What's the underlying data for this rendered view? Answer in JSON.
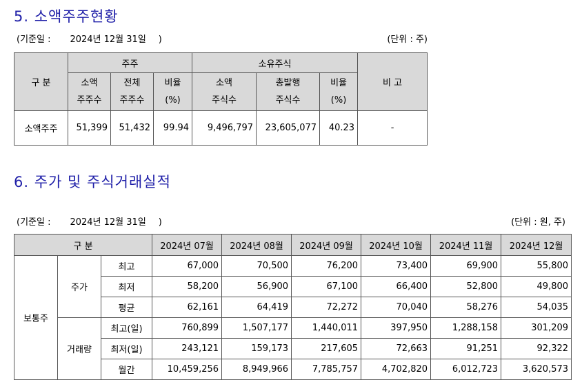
{
  "section5": {
    "title": "5. 소액주주현황",
    "basis_label": "(기준일 :",
    "basis_date": "2024년 12월 31일",
    "basis_close": ")",
    "unit": "(단위 : 주)",
    "headers": {
      "category": "구 분",
      "holders_group": "주주",
      "shares_group": "소유주식",
      "note": "비 고",
      "minor_holders_l1": "소액",
      "minor_holders_l2": "주주수",
      "total_holders_l1": "전체",
      "total_holders_l2": "주주수",
      "ratio1_l1": "비율",
      "ratio1_l2": "(%)",
      "minor_shares_l1": "소액",
      "minor_shares_l2": "주식수",
      "total_shares_l1": "총발행",
      "total_shares_l2": "주식수",
      "ratio2_l1": "비율",
      "ratio2_l2": "(%)"
    },
    "row": {
      "label": "소액주주",
      "minor_holders": "51,399",
      "total_holders": "51,432",
      "ratio1": "99.94",
      "minor_shares": "9,496,797",
      "total_shares": "23,605,077",
      "ratio2": "40.23",
      "note": "-"
    }
  },
  "section6": {
    "title": "6. 주가 및 주식거래실적",
    "basis_label": "(기준일 :",
    "basis_date": "2024년 12월 31일",
    "basis_close": ")",
    "unit": "(단위 : 원, 주)",
    "header_category": "구 분",
    "months": [
      "2024년 07월",
      "2024년 08월",
      "2024년 09월",
      "2024년 10월",
      "2024년 11월",
      "2024년 12월"
    ],
    "stock_type": "보통주",
    "price_group": "주가",
    "volume_group": "거래량",
    "price_rows": [
      {
        "label": "최고",
        "values": [
          "67,000",
          "70,500",
          "76,200",
          "73,400",
          "69,900",
          "55,800"
        ]
      },
      {
        "label": "최저",
        "values": [
          "58,200",
          "56,900",
          "67,100",
          "66,400",
          "52,800",
          "49,800"
        ]
      },
      {
        "label": "평균",
        "values": [
          "62,161",
          "64,419",
          "72,272",
          "70,040",
          "58,276",
          "54,035"
        ]
      }
    ],
    "volume_rows": [
      {
        "label": "최고(일)",
        "values": [
          "760,899",
          "1,507,177",
          "1,440,011",
          "397,950",
          "1,288,158",
          "301,209"
        ]
      },
      {
        "label": "최저(일)",
        "values": [
          "243,121",
          "159,173",
          "217,605",
          "72,663",
          "91,251",
          "92,322"
        ]
      },
      {
        "label": "월간",
        "values": [
          "10,459,256",
          "8,949,966",
          "7,785,757",
          "4,702,820",
          "6,012,723",
          "3,620,573"
        ]
      }
    ]
  }
}
